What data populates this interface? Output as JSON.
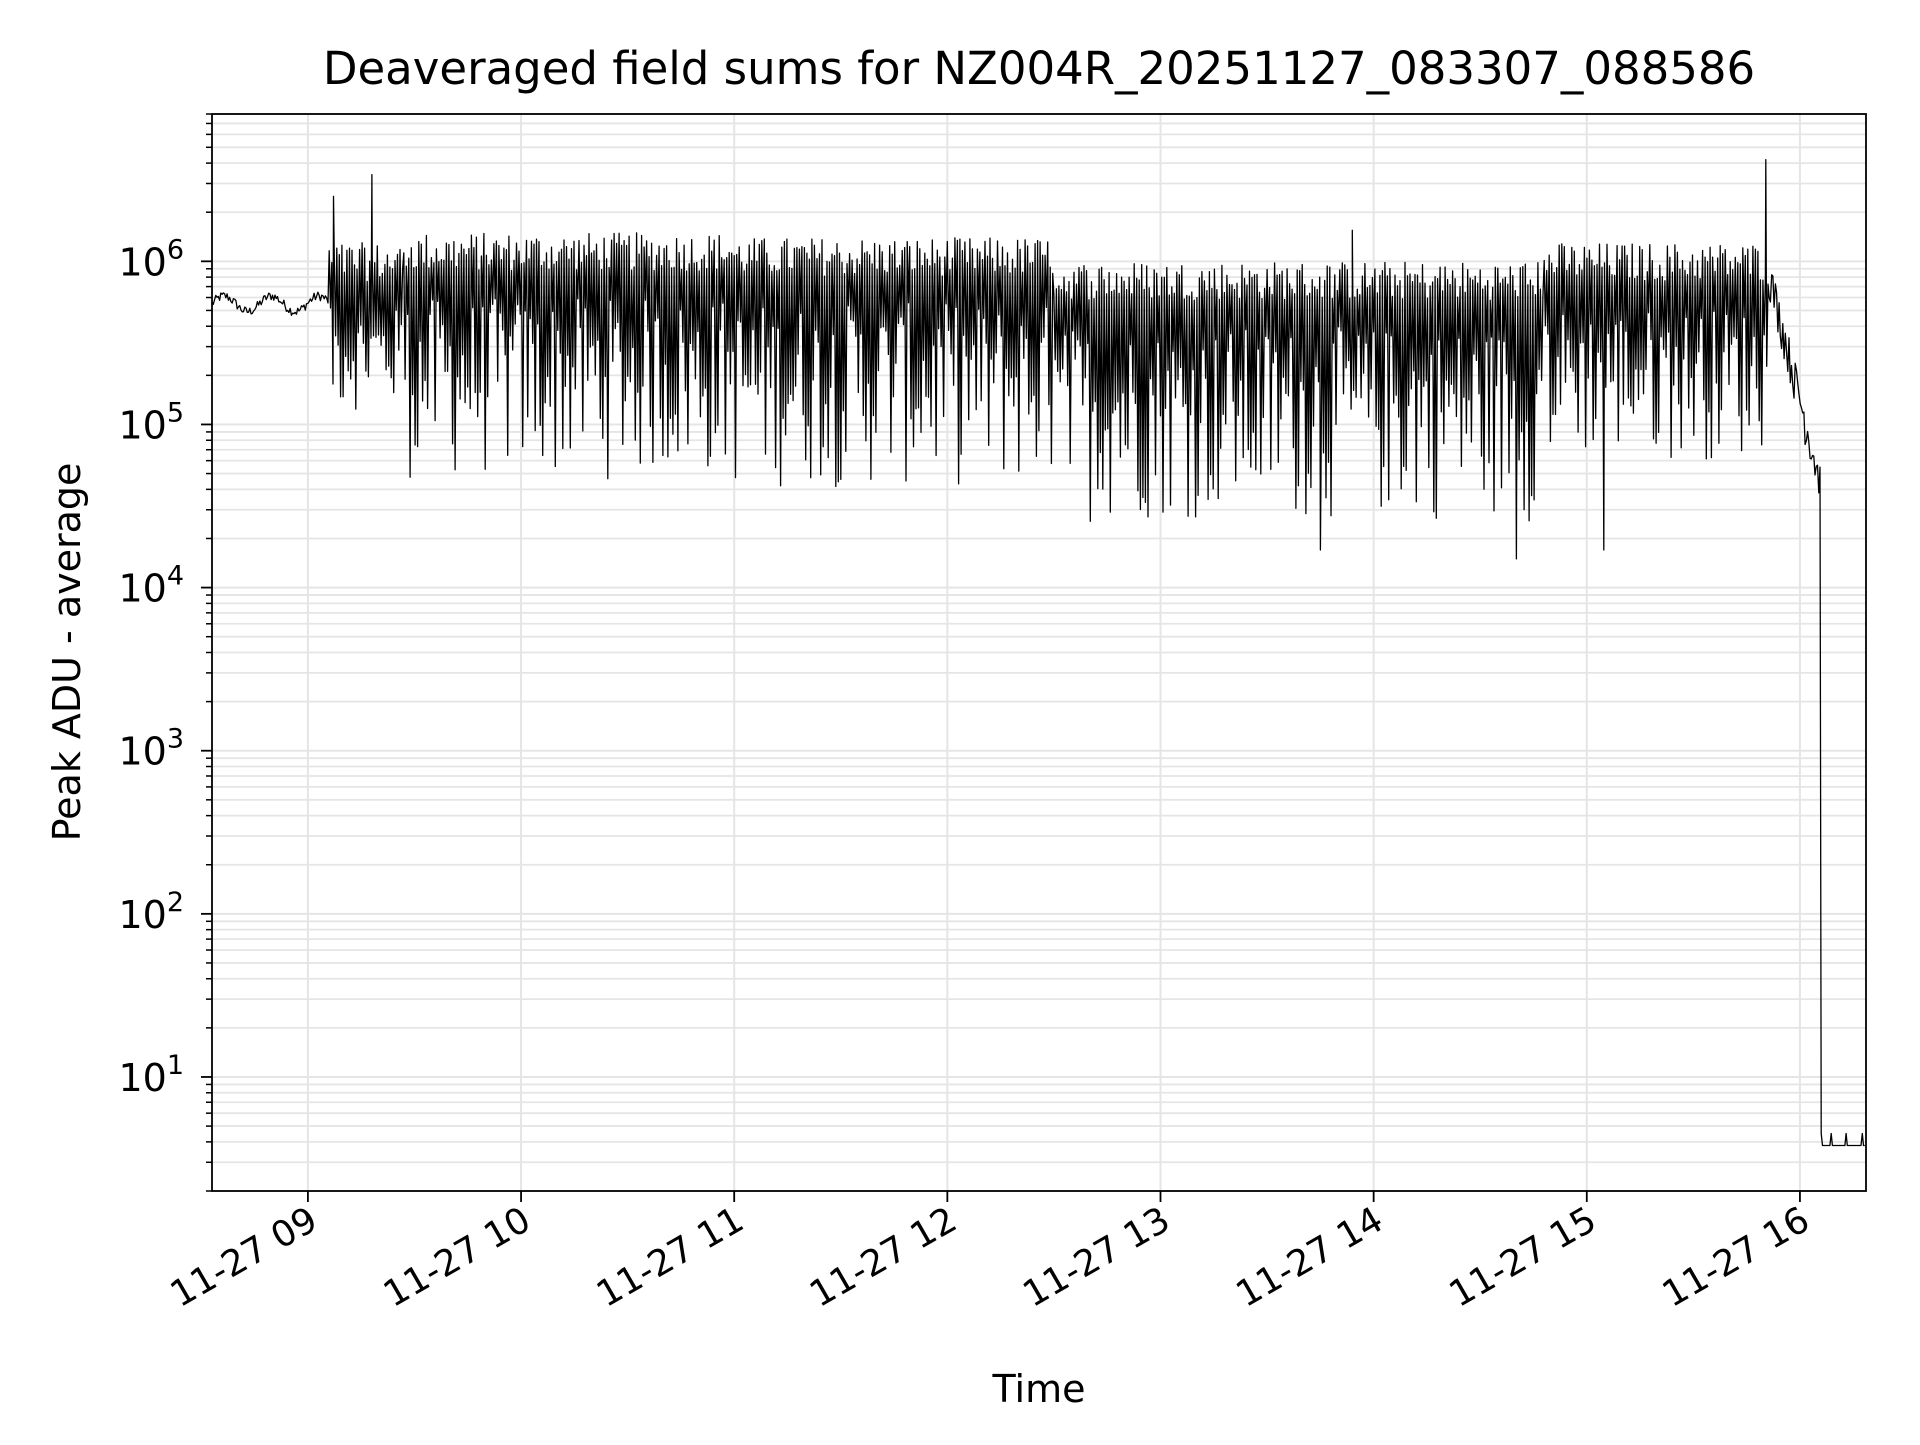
{
  "chart_data": {
    "type": "line",
    "title": "Deaveraged field sums for NZ004R_20251127_083307_088586",
    "xlabel": "Time",
    "ylabel": "Peak ADU - average",
    "yscale": "log",
    "ylim": [
      2,
      8000000
    ],
    "xlim_hours": [
      8.55,
      16.31
    ],
    "grid": true,
    "line_color": "#000000",
    "grid_color": "#e5e5e5",
    "x_ticks": [
      {
        "hour": 9,
        "label": "11-27 09"
      },
      {
        "hour": 10,
        "label": "11-27 10"
      },
      {
        "hour": 11,
        "label": "11-27 11"
      },
      {
        "hour": 12,
        "label": "11-27 12"
      },
      {
        "hour": 13,
        "label": "11-27 13"
      },
      {
        "hour": 14,
        "label": "11-27 14"
      },
      {
        "hour": 15,
        "label": "11-27 15"
      },
      {
        "hour": 16,
        "label": "11-27 16"
      }
    ],
    "y_ticks": [
      {
        "value": 10,
        "base": "10",
        "exp": "1"
      },
      {
        "value": 100,
        "base": "10",
        "exp": "2"
      },
      {
        "value": 1000,
        "base": "10",
        "exp": "3"
      },
      {
        "value": 10000,
        "base": "10",
        "exp": "4"
      },
      {
        "value": 100000,
        "base": "10",
        "exp": "5"
      },
      {
        "value": 1000000,
        "base": "10",
        "exp": "6"
      }
    ],
    "series": [
      {
        "name": "Peak ADU - average",
        "segments": [
          {
            "start": 8.55,
            "end": 9.1,
            "kind": "smooth",
            "upper": 700000,
            "lower": 450000
          },
          {
            "start": 9.1,
            "end": 9.45,
            "kind": "oscillating",
            "upper": 1300000,
            "lower": 120000
          },
          {
            "start": 9.45,
            "end": 11.0,
            "kind": "oscillating",
            "upper": 1500000,
            "lower": 45000
          },
          {
            "start": 11.0,
            "end": 12.5,
            "kind": "oscillating",
            "upper": 1400000,
            "lower": 40000
          },
          {
            "start": 12.5,
            "end": 14.8,
            "kind": "oscillating",
            "upper": 1000000,
            "lower": 25000
          },
          {
            "start": 14.8,
            "end": 15.85,
            "kind": "oscillating",
            "upper": 1300000,
            "lower": 60000
          },
          {
            "start": 15.85,
            "end": 16.1,
            "kind": "decay",
            "upper": 900000,
            "lower": 30000
          },
          {
            "start": 16.1,
            "end": 16.31,
            "kind": "floor",
            "upper": 4.5,
            "lower": 3.8
          }
        ],
        "spikes": [
          {
            "hour": 9.12,
            "value": 2500000
          },
          {
            "hour": 9.3,
            "value": 3400000
          },
          {
            "hour": 13.9,
            "value": 1550000
          },
          {
            "hour": 15.84,
            "value": 4200000
          }
        ],
        "dips": [
          {
            "hour": 13.75,
            "value": 17000
          },
          {
            "hour": 14.67,
            "value": 15000
          },
          {
            "hour": 15.08,
            "value": 17000
          }
        ]
      }
    ]
  }
}
